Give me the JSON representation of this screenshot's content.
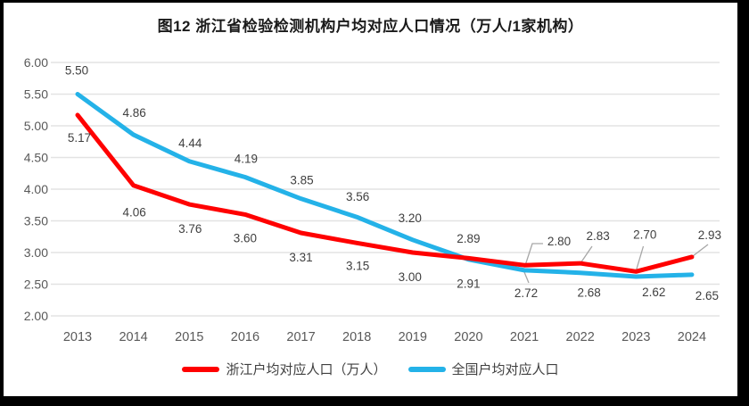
{
  "frame": {
    "border_color": "#000000",
    "background": "#ffffff"
  },
  "chart_data": {
    "type": "line",
    "title": "图12 浙江省检验检测机构户均对应人口情况（万人/1家机构）",
    "x": [
      "2013",
      "2014",
      "2015",
      "2016",
      "2017",
      "2018",
      "2019",
      "2020",
      "2021",
      "2022",
      "2023",
      "2024"
    ],
    "y_ticks": [
      "6.00",
      "5.50",
      "5.00",
      "4.50",
      "4.00",
      "3.50",
      "3.00",
      "2.50",
      "2.00"
    ],
    "ylim": [
      2.0,
      6.0
    ],
    "grid": true,
    "legend_position": "bottom",
    "value_label_format": "0.00",
    "series": [
      {
        "id": "zhejiang",
        "name": "浙江户均对应人口（万人）",
        "color": "#FF0000",
        "values": [
          5.17,
          4.06,
          3.76,
          3.6,
          3.31,
          3.15,
          3.0,
          2.91,
          2.8,
          2.83,
          2.7,
          2.93
        ],
        "label_offsets": [
          [
            2,
            30
          ],
          [
            1,
            35
          ],
          [
            1,
            32
          ],
          [
            0,
            31
          ],
          [
            0,
            32
          ],
          [
            1,
            30
          ],
          [
            -3,
            32
          ],
          [
            0,
            33
          ],
          [
            39,
            -22
          ],
          [
            20,
            -26
          ],
          [
            10,
            -37
          ],
          [
            20,
            -20
          ]
        ]
      },
      {
        "id": "national",
        "name": "全国户均对应人口",
        "color": "#24B2E8",
        "values": [
          5.5,
          4.86,
          4.44,
          4.19,
          3.85,
          3.56,
          3.2,
          2.89,
          2.72,
          2.68,
          2.62,
          2.65
        ],
        "label_offsets": [
          [
            -1,
            -22
          ],
          [
            1,
            -20
          ],
          [
            1,
            -16
          ],
          [
            1,
            -16
          ],
          [
            1,
            -16
          ],
          [
            1,
            -18
          ],
          [
            -3,
            -20
          ],
          [
            0,
            -19
          ],
          [
            2,
            30
          ],
          [
            10,
            27
          ],
          [
            20,
            22
          ],
          [
            17,
            28
          ]
        ]
      }
    ],
    "callouts": [
      {
        "series": "zhejiang",
        "points": [
          [
            584.5,
            296
          ],
          [
            593,
            270
          ],
          [
            605,
            270
          ]
        ]
      },
      {
        "series": "zhejiang",
        "points": [
          [
            647,
            292
          ],
          [
            660,
            273
          ]
        ]
      },
      {
        "series": "zhejiang",
        "points": [
          [
            709.5,
            300
          ],
          [
            717.5,
            273
          ]
        ]
      },
      {
        "series": "zhejiang",
        "points": [
          [
            773,
            284
          ],
          [
            790,
            271
          ]
        ]
      },
      {
        "series": "national",
        "points": [
          [
            584,
            302
          ],
          [
            589,
            314
          ]
        ]
      }
    ],
    "colors": {
      "grid": "#E3E3E3",
      "tick_text": "#595959",
      "value_text": "#3F3F3F",
      "leader": "#A6A6A6",
      "title_text": "#1A1A1A"
    }
  }
}
